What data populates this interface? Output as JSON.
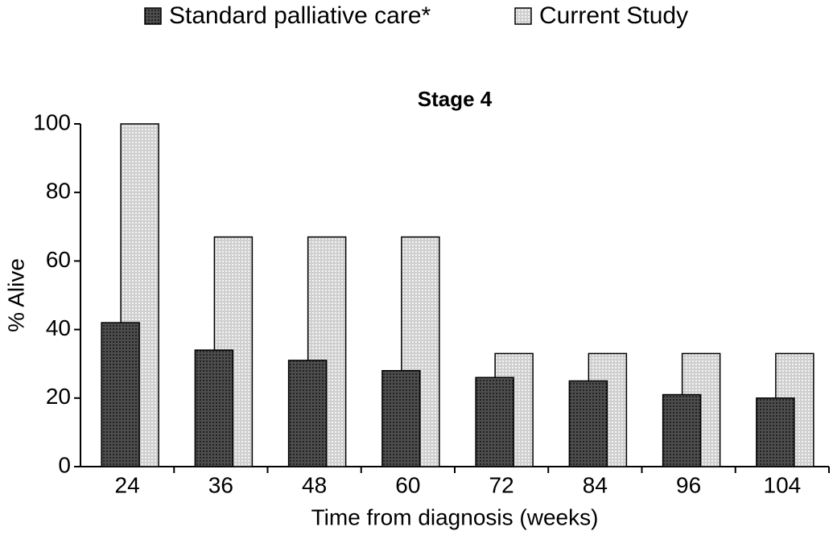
{
  "chart_data": {
    "type": "bar",
    "title": "Stage 4",
    "x_label": "Time from diagnosis (weeks)",
    "y_label": "% Alive",
    "categories": [
      "24",
      "36",
      "48",
      "60",
      "72",
      "84",
      "96",
      "104"
    ],
    "series": [
      {
        "name": "Standard palliative care*",
        "color": "#4d4d4d",
        "values": [
          42,
          34,
          31,
          28,
          26,
          25,
          21,
          20
        ]
      },
      {
        "name": "Current Study",
        "color": "#cfcfcf",
        "values": [
          100,
          67,
          67,
          67,
          33,
          33,
          33,
          33
        ]
      }
    ],
    "ylim": [
      0,
      100
    ],
    "yticks": [
      0,
      20,
      40,
      60,
      80,
      100
    ],
    "grid": false,
    "legend": "top"
  }
}
